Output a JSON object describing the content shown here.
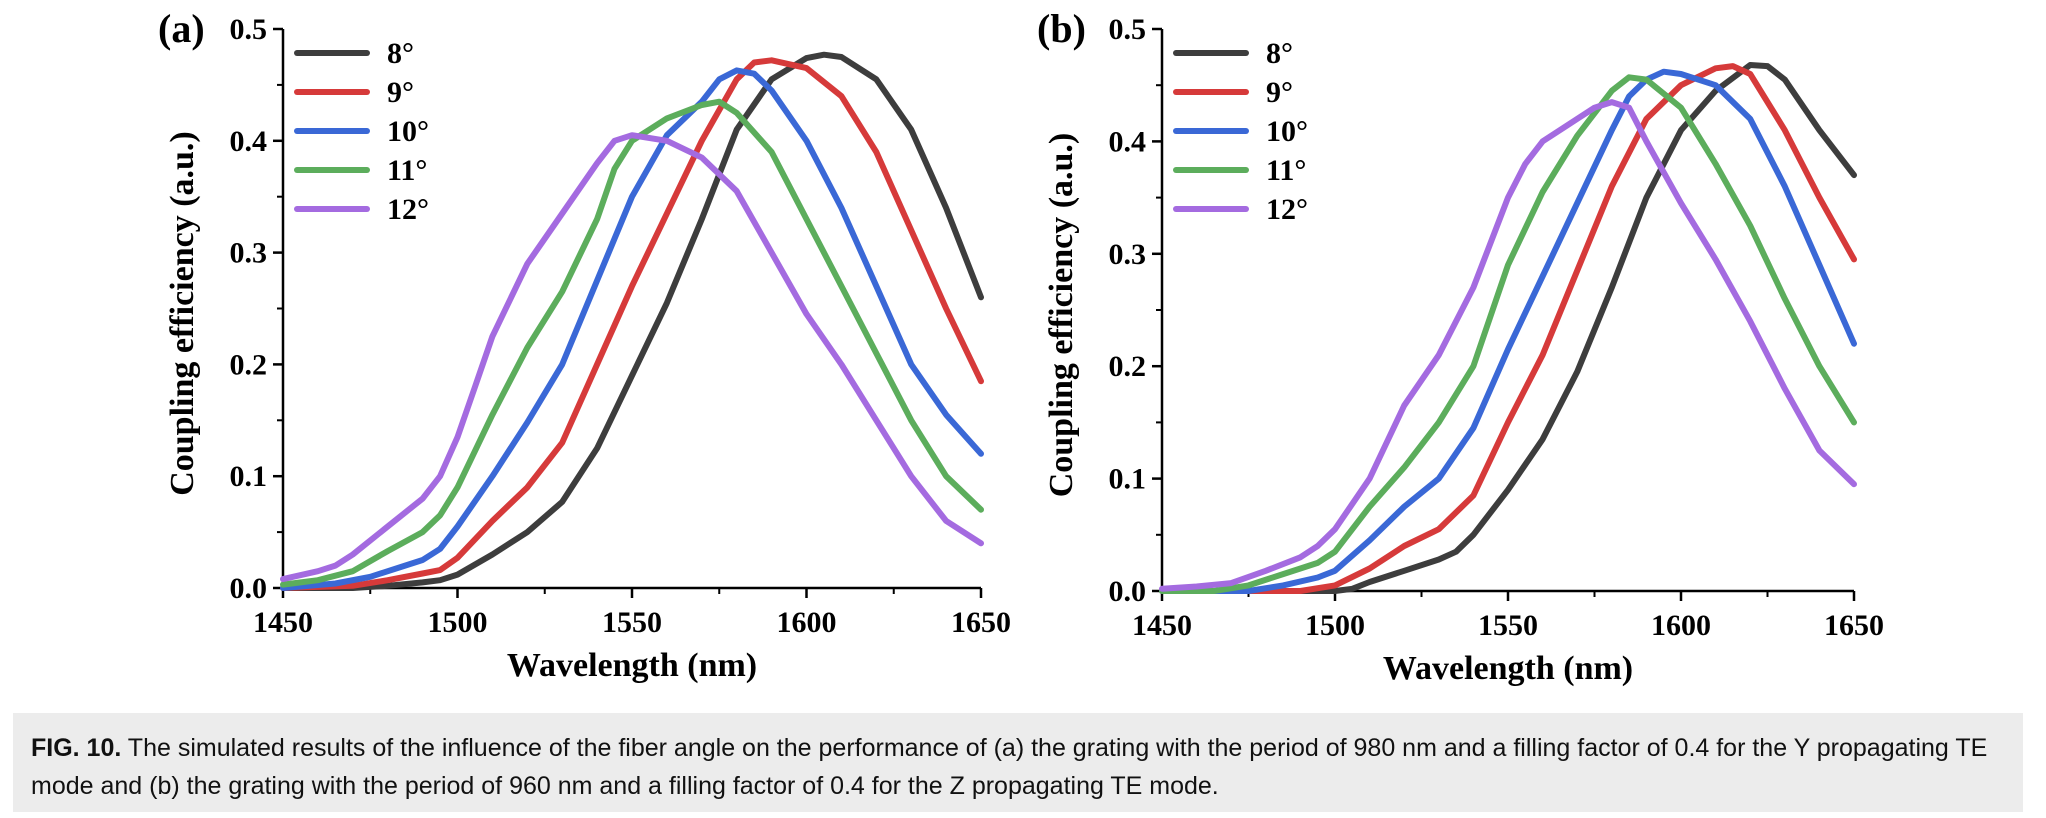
{
  "chart_data": [
    {
      "type": "line",
      "panel_label": "(a)",
      "xlabel": "Wavelength (nm)",
      "ylabel": "Coupling efficiency (a.u.)",
      "xlim": [
        1450,
        1650
      ],
      "ylim": [
        0,
        0.5
      ],
      "x_ticks": [
        "1450",
        "1500",
        "1550",
        "1600",
        "1650"
      ],
      "y_ticks": [
        "0.0",
        "0.1",
        "0.2",
        "0.3",
        "0.4",
        "0.5"
      ],
      "legend_position": "top-left",
      "series": [
        {
          "name": "8°",
          "color": "#3d3d3d",
          "points": [
            [
              1450,
              0
            ],
            [
              1470,
              0
            ],
            [
              1480,
              0.002
            ],
            [
              1490,
              0.005
            ],
            [
              1495,
              0.007
            ],
            [
              1500,
              0.012
            ],
            [
              1510,
              0.03
            ],
            [
              1520,
              0.05
            ],
            [
              1530,
              0.077
            ],
            [
              1540,
              0.125
            ],
            [
              1550,
              0.19
            ],
            [
              1560,
              0.255
            ],
            [
              1570,
              0.33
            ],
            [
              1580,
              0.41
            ],
            [
              1590,
              0.455
            ],
            [
              1600,
              0.474
            ],
            [
              1605,
              0.477
            ],
            [
              1610,
              0.475
            ],
            [
              1620,
              0.455
            ],
            [
              1630,
              0.41
            ],
            [
              1640,
              0.34
            ],
            [
              1650,
              0.26
            ]
          ]
        },
        {
          "name": "9°",
          "color": "#d63a3a",
          "points": [
            [
              1450,
              0
            ],
            [
              1470,
              0.002
            ],
            [
              1480,
              0.007
            ],
            [
              1490,
              0.013
            ],
            [
              1495,
              0.016
            ],
            [
              1500,
              0.027
            ],
            [
              1510,
              0.06
            ],
            [
              1520,
              0.09
            ],
            [
              1530,
              0.13
            ],
            [
              1540,
              0.2
            ],
            [
              1550,
              0.27
            ],
            [
              1560,
              0.335
            ],
            [
              1570,
              0.4
            ],
            [
              1580,
              0.455
            ],
            [
              1585,
              0.47
            ],
            [
              1590,
              0.472
            ],
            [
              1600,
              0.465
            ],
            [
              1610,
              0.44
            ],
            [
              1620,
              0.39
            ],
            [
              1630,
              0.32
            ],
            [
              1640,
              0.25
            ],
            [
              1650,
              0.185
            ]
          ]
        },
        {
          "name": "10°",
          "color": "#3a68d6",
          "points": [
            [
              1450,
              0
            ],
            [
              1465,
              0.004
            ],
            [
              1475,
              0.01
            ],
            [
              1485,
              0.02
            ],
            [
              1490,
              0.025
            ],
            [
              1495,
              0.035
            ],
            [
              1500,
              0.055
            ],
            [
              1510,
              0.1
            ],
            [
              1520,
              0.148
            ],
            [
              1530,
              0.2
            ],
            [
              1540,
              0.275
            ],
            [
              1550,
              0.35
            ],
            [
              1560,
              0.405
            ],
            [
              1570,
              0.435
            ],
            [
              1575,
              0.455
            ],
            [
              1580,
              0.463
            ],
            [
              1585,
              0.46
            ],
            [
              1590,
              0.445
            ],
            [
              1600,
              0.4
            ],
            [
              1610,
              0.34
            ],
            [
              1620,
              0.27
            ],
            [
              1630,
              0.2
            ],
            [
              1640,
              0.155
            ],
            [
              1650,
              0.12
            ]
          ]
        },
        {
          "name": "11°",
          "color": "#5cad5c",
          "points": [
            [
              1450,
              0.003
            ],
            [
              1460,
              0.007
            ],
            [
              1470,
              0.015
            ],
            [
              1480,
              0.033
            ],
            [
              1490,
              0.05
            ],
            [
              1495,
              0.065
            ],
            [
              1500,
              0.09
            ],
            [
              1510,
              0.155
            ],
            [
              1520,
              0.215
            ],
            [
              1530,
              0.265
            ],
            [
              1540,
              0.33
            ],
            [
              1545,
              0.375
            ],
            [
              1550,
              0.4
            ],
            [
              1560,
              0.42
            ],
            [
              1570,
              0.432
            ],
            [
              1575,
              0.435
            ],
            [
              1580,
              0.425
            ],
            [
              1590,
              0.39
            ],
            [
              1600,
              0.33
            ],
            [
              1610,
              0.27
            ],
            [
              1620,
              0.21
            ],
            [
              1630,
              0.15
            ],
            [
              1640,
              0.1
            ],
            [
              1650,
              0.07
            ]
          ]
        },
        {
          "name": "12°",
          "color": "#a46be0",
          "points": [
            [
              1450,
              0.008
            ],
            [
              1460,
              0.015
            ],
            [
              1465,
              0.02
            ],
            [
              1470,
              0.03
            ],
            [
              1480,
              0.055
            ],
            [
              1490,
              0.08
            ],
            [
              1495,
              0.1
            ],
            [
              1500,
              0.135
            ],
            [
              1505,
              0.18
            ],
            [
              1510,
              0.225
            ],
            [
              1520,
              0.29
            ],
            [
              1530,
              0.335
            ],
            [
              1540,
              0.38
            ],
            [
              1545,
              0.4
            ],
            [
              1550,
              0.405
            ],
            [
              1560,
              0.4
            ],
            [
              1570,
              0.385
            ],
            [
              1580,
              0.355
            ],
            [
              1590,
              0.3
            ],
            [
              1600,
              0.245
            ],
            [
              1610,
              0.2
            ],
            [
              1620,
              0.15
            ],
            [
              1630,
              0.1
            ],
            [
              1640,
              0.06
            ],
            [
              1650,
              0.04
            ]
          ]
        }
      ]
    },
    {
      "type": "line",
      "panel_label": "(b)",
      "xlabel": "Wavelength (nm)",
      "ylabel": "Coupling efficiency (a.u.)",
      "xlim": [
        1450,
        1650
      ],
      "ylim": [
        0,
        0.5
      ],
      "x_ticks": [
        "1450",
        "1500",
        "1550",
        "1600",
        "1650"
      ],
      "y_ticks": [
        "0.0",
        "0.1",
        "0.2",
        "0.3",
        "0.4",
        "0.5"
      ],
      "legend_position": "top-left",
      "series": [
        {
          "name": "8°",
          "color": "#3d3d3d",
          "points": [
            [
              1450,
              0
            ],
            [
              1500,
              0
            ],
            [
              1505,
              0.002
            ],
            [
              1510,
              0.008
            ],
            [
              1520,
              0.018
            ],
            [
              1530,
              0.028
            ],
            [
              1535,
              0.035
            ],
            [
              1540,
              0.05
            ],
            [
              1550,
              0.09
            ],
            [
              1560,
              0.135
            ],
            [
              1570,
              0.195
            ],
            [
              1580,
              0.27
            ],
            [
              1590,
              0.35
            ],
            [
              1600,
              0.41
            ],
            [
              1610,
              0.445
            ],
            [
              1620,
              0.468
            ],
            [
              1625,
              0.467
            ],
            [
              1630,
              0.455
            ],
            [
              1640,
              0.41
            ],
            [
              1650,
              0.37
            ]
          ]
        },
        {
          "name": "9°",
          "color": "#d63a3a",
          "points": [
            [
              1450,
              0
            ],
            [
              1490,
              0
            ],
            [
              1500,
              0.005
            ],
            [
              1510,
              0.02
            ],
            [
              1520,
              0.04
            ],
            [
              1530,
              0.055
            ],
            [
              1540,
              0.085
            ],
            [
              1550,
              0.15
            ],
            [
              1560,
              0.21
            ],
            [
              1570,
              0.285
            ],
            [
              1580,
              0.36
            ],
            [
              1590,
              0.42
            ],
            [
              1600,
              0.45
            ],
            [
              1610,
              0.465
            ],
            [
              1615,
              0.467
            ],
            [
              1620,
              0.46
            ],
            [
              1630,
              0.41
            ],
            [
              1640,
              0.35
            ],
            [
              1650,
              0.295
            ]
          ]
        },
        {
          "name": "10°",
          "color": "#3a68d6",
          "points": [
            [
              1450,
              0
            ],
            [
              1475,
              0
            ],
            [
              1485,
              0.005
            ],
            [
              1495,
              0.012
            ],
            [
              1500,
              0.018
            ],
            [
              1510,
              0.045
            ],
            [
              1520,
              0.075
            ],
            [
              1530,
              0.1
            ],
            [
              1540,
              0.145
            ],
            [
              1550,
              0.215
            ],
            [
              1560,
              0.28
            ],
            [
              1570,
              0.345
            ],
            [
              1580,
              0.41
            ],
            [
              1585,
              0.44
            ],
            [
              1590,
              0.455
            ],
            [
              1595,
              0.462
            ],
            [
              1600,
              0.46
            ],
            [
              1610,
              0.45
            ],
            [
              1620,
              0.42
            ],
            [
              1630,
              0.36
            ],
            [
              1640,
              0.29
            ],
            [
              1650,
              0.22
            ]
          ]
        },
        {
          "name": "11°",
          "color": "#5cad5c",
          "points": [
            [
              1450,
              0
            ],
            [
              1465,
              0
            ],
            [
              1475,
              0.005
            ],
            [
              1485,
              0.015
            ],
            [
              1495,
              0.025
            ],
            [
              1500,
              0.035
            ],
            [
              1510,
              0.075
            ],
            [
              1520,
              0.11
            ],
            [
              1530,
              0.15
            ],
            [
              1540,
              0.2
            ],
            [
              1550,
              0.29
            ],
            [
              1560,
              0.355
            ],
            [
              1570,
              0.405
            ],
            [
              1580,
              0.445
            ],
            [
              1585,
              0.457
            ],
            [
              1590,
              0.455
            ],
            [
              1600,
              0.43
            ],
            [
              1610,
              0.38
            ],
            [
              1620,
              0.325
            ],
            [
              1630,
              0.26
            ],
            [
              1640,
              0.2
            ],
            [
              1650,
              0.15
            ]
          ]
        },
        {
          "name": "12°",
          "color": "#a46be0",
          "points": [
            [
              1450,
              0.002
            ],
            [
              1460,
              0.004
            ],
            [
              1470,
              0.007
            ],
            [
              1480,
              0.018
            ],
            [
              1490,
              0.03
            ],
            [
              1495,
              0.04
            ],
            [
              1500,
              0.055
            ],
            [
              1510,
              0.1
            ],
            [
              1520,
              0.165
            ],
            [
              1530,
              0.21
            ],
            [
              1540,
              0.27
            ],
            [
              1550,
              0.35
            ],
            [
              1555,
              0.38
            ],
            [
              1560,
              0.4
            ],
            [
              1570,
              0.42
            ],
            [
              1575,
              0.43
            ],
            [
              1580,
              0.435
            ],
            [
              1585,
              0.43
            ],
            [
              1590,
              0.4
            ],
            [
              1600,
              0.345
            ],
            [
              1610,
              0.295
            ],
            [
              1620,
              0.24
            ],
            [
              1630,
              0.18
            ],
            [
              1640,
              0.125
            ],
            [
              1650,
              0.095
            ]
          ]
        }
      ]
    }
  ],
  "caption": {
    "figure_number": "FIG. 10.",
    "text": " The simulated results of the influence of the fiber angle on the performance of (a) the grating with the period of 980 nm and a filling factor of 0.4 for the Y propagating TE mode and (b) the grating with the period of 960 nm and a filling factor of 0.4 for the Z propagating TE mode."
  }
}
